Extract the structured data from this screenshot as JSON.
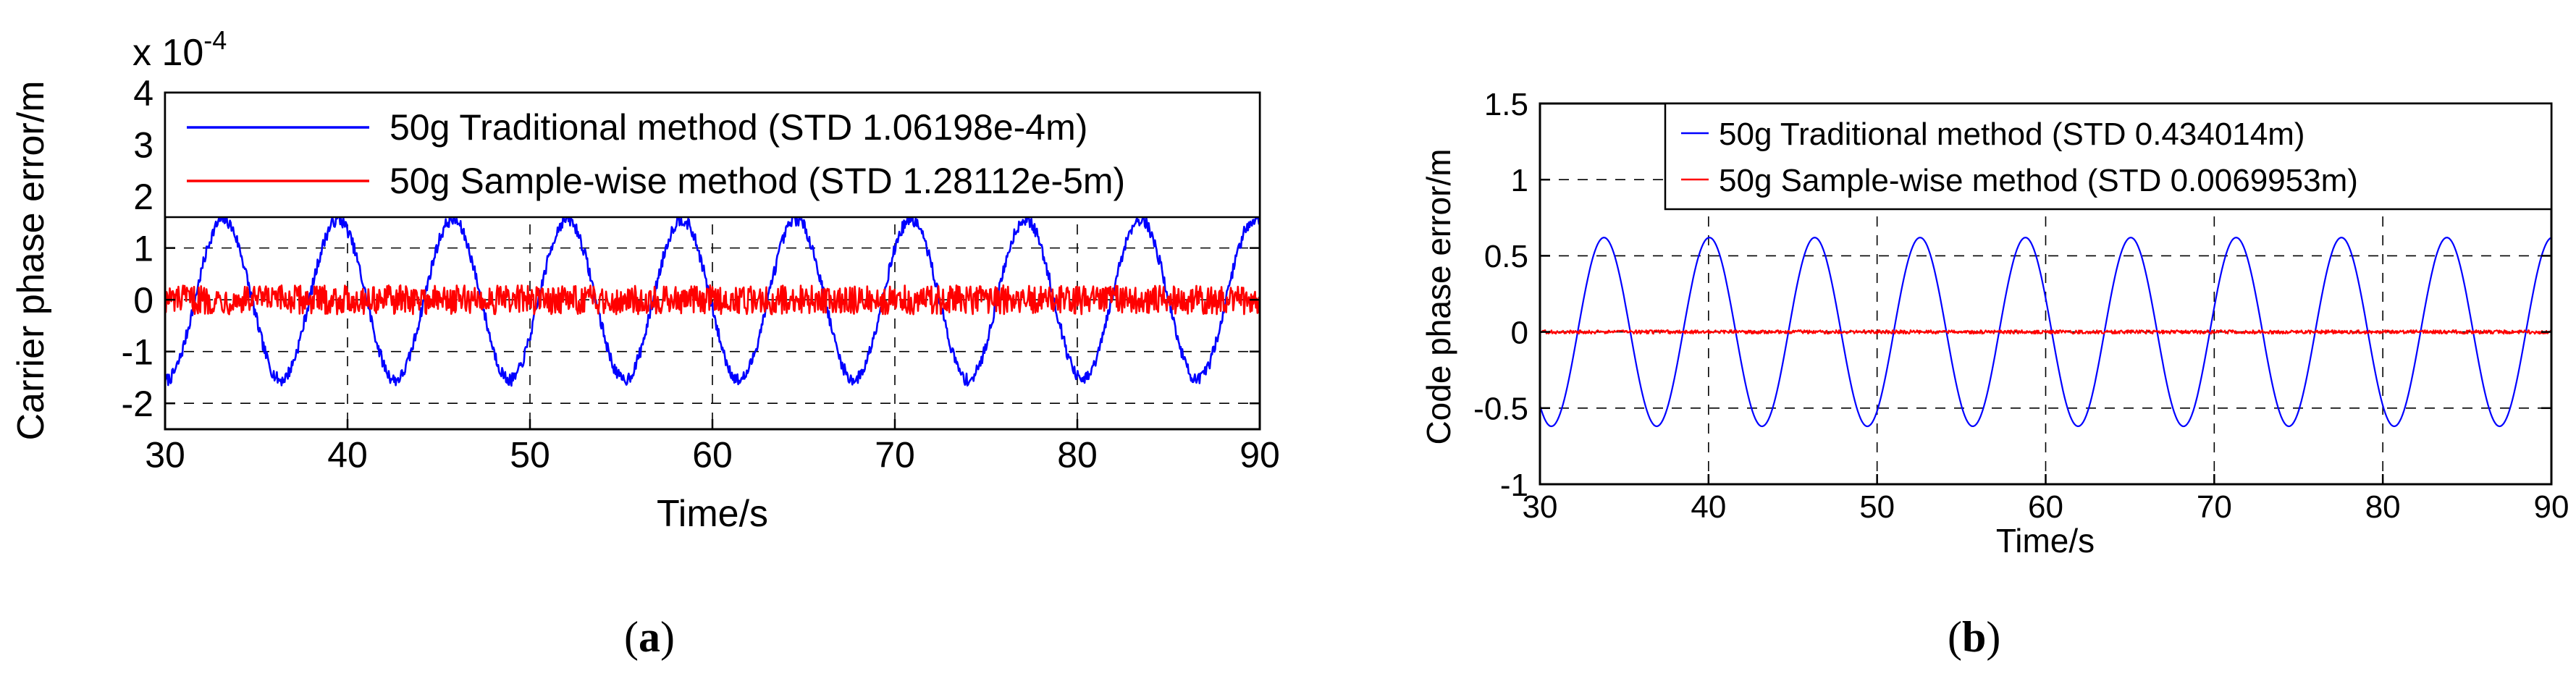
{
  "charts": [
    {
      "type": "line",
      "xlabel": "Time/s",
      "ylabel": "Carrier phase error/m",
      "multiplier": {
        "base": "x 10",
        "exponent": "-4"
      },
      "xlim": [
        30,
        90
      ],
      "ylim": [
        -2.5,
        4
      ],
      "xticks": [
        30,
        40,
        50,
        60,
        70,
        80,
        90
      ],
      "yticks": [
        -2,
        -1,
        0,
        1,
        2,
        3,
        4
      ],
      "grid": "dashed",
      "legend_position": "top",
      "caption": {
        "letter": "a"
      },
      "series": [
        {
          "name": "50g  Traditional method (STD 1.06198e-4m)",
          "color": "#0000ff",
          "model": "sine",
          "amplitude": 1.55,
          "period": 6.28,
          "peak_at": 33.2,
          "noise": 0.12
        },
        {
          "name": "50g  Sample-wise method (STD 1.28112e-5m)",
          "color": "#ff0000",
          "model": "noise",
          "center": 0,
          "noise": 0.28
        }
      ]
    },
    {
      "type": "line",
      "xlabel": "Time/s",
      "ylabel": "Code phase error/m",
      "xlim": [
        30,
        90
      ],
      "ylim": [
        -1,
        1.5
      ],
      "xticks": [
        30,
        40,
        50,
        60,
        70,
        80,
        90
      ],
      "yticks": [
        -1,
        -0.5,
        0,
        0.5,
        1,
        1.5
      ],
      "grid": "dashed",
      "legend_position": "top",
      "caption": {
        "letter": "b"
      },
      "series": [
        {
          "name": "50g  Traditional method (STD 0.434014m)",
          "color": "#0000ff",
          "model": "sine",
          "amplitude": 0.62,
          "period": 6.25,
          "peak_at": 33.8,
          "noise": 0
        },
        {
          "name": "50g  Sample-wise method (STD 0.0069953m)",
          "color": "#ff0000",
          "model": "noise",
          "center": 0,
          "noise": 0.012
        }
      ]
    }
  ]
}
